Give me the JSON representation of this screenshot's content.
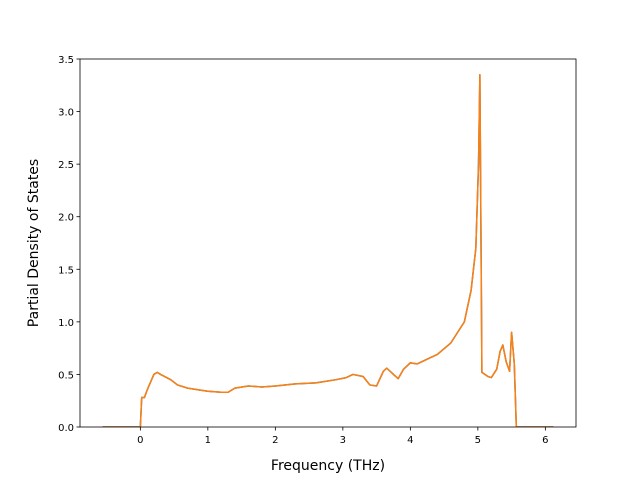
{
  "chart_data": {
    "type": "line",
    "xlabel": "Frequency (THz)",
    "ylabel": "Partial Density of States",
    "x": [
      -0.56,
      0.0,
      0.02,
      0.06,
      0.1,
      0.2,
      0.25,
      0.3,
      0.45,
      0.55,
      0.7,
      0.9,
      1.0,
      1.2,
      1.3,
      1.4,
      1.6,
      1.8,
      2.0,
      2.3,
      2.6,
      2.9,
      3.05,
      3.15,
      3.3,
      3.4,
      3.5,
      3.6,
      3.65,
      3.75,
      3.82,
      3.9,
      4.0,
      4.1,
      4.3,
      4.4,
      4.6,
      4.8,
      4.9,
      4.97,
      5.01,
      5.03,
      5.06,
      5.15,
      5.2,
      5.28,
      5.33,
      5.37,
      5.42,
      5.47,
      5.5,
      5.54,
      5.57,
      5.8,
      6.12
    ],
    "series": [
      {
        "color": "#1f77b4",
        "values": [
          0,
          0,
          0.28,
          0.28,
          0.35,
          0.5,
          0.52,
          0.5,
          0.45,
          0.4,
          0.37,
          0.35,
          0.34,
          0.33,
          0.33,
          0.37,
          0.39,
          0.38,
          0.39,
          0.41,
          0.42,
          0.45,
          0.47,
          0.5,
          0.48,
          0.4,
          0.39,
          0.53,
          0.56,
          0.5,
          0.46,
          0.55,
          0.61,
          0.6,
          0.66,
          0.69,
          0.8,
          1.0,
          1.3,
          1.7,
          2.5,
          3.35,
          0.52,
          0.48,
          0.47,
          0.55,
          0.72,
          0.78,
          0.62,
          0.53,
          0.9,
          0.6,
          0,
          0,
          0
        ]
      },
      {
        "color": "#ff7f0e",
        "values": [
          0,
          0,
          0.28,
          0.28,
          0.35,
          0.5,
          0.52,
          0.5,
          0.45,
          0.4,
          0.37,
          0.35,
          0.34,
          0.33,
          0.33,
          0.37,
          0.39,
          0.38,
          0.39,
          0.41,
          0.42,
          0.45,
          0.47,
          0.5,
          0.48,
          0.4,
          0.39,
          0.53,
          0.56,
          0.5,
          0.46,
          0.55,
          0.61,
          0.6,
          0.66,
          0.69,
          0.8,
          1.0,
          1.3,
          1.7,
          2.5,
          3.35,
          0.52,
          0.48,
          0.47,
          0.55,
          0.72,
          0.78,
          0.62,
          0.53,
          0.9,
          0.6,
          0,
          0,
          0
        ]
      }
    ],
    "xlim": [
      -0.894,
      6.454
    ],
    "xticks": [
      0,
      1,
      2,
      3,
      4,
      5,
      6
    ],
    "ylim": [
      0,
      3.5
    ],
    "yticks": [
      {
        "value": 0,
        "label": "0.0"
      },
      {
        "value": 0.5,
        "label": "0.5"
      },
      {
        "value": 1,
        "label": "1.0"
      },
      {
        "value": 1.5,
        "label": "1.5"
      },
      {
        "value": 2,
        "label": "2.0"
      },
      {
        "value": 2.5,
        "label": "2.5"
      },
      {
        "value": 3,
        "label": "3.0"
      },
      {
        "value": 3.5,
        "label": "3.5"
      }
    ]
  }
}
